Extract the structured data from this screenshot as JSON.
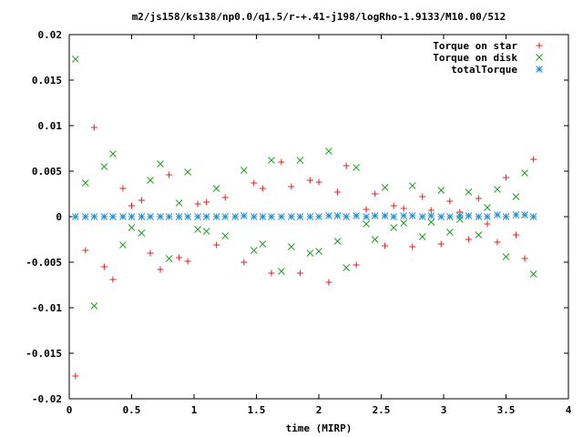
{
  "chart_data": {
    "type": "scatter",
    "title": "m2/js158/ks138/np0.0/q1.5/r-+.41-j198/logRho-1.9133/M10.00/512",
    "xlabel": "time (MIRP)",
    "ylabel": "",
    "xlim": [
      0,
      4
    ],
    "ylim": [
      -0.02,
      0.02
    ],
    "xticks": [
      "0",
      "0.5",
      "1",
      "1.5",
      "2",
      "2.5",
      "3",
      "3.5",
      "4"
    ],
    "yticks": [
      "0.02",
      "0.015",
      "0.01",
      "0.005",
      "0",
      "-0.005",
      "-0.01",
      "-0.015",
      "-0.02"
    ],
    "grid": false,
    "legend_position": "top-right",
    "series": [
      {
        "name": "Torque on star",
        "marker": "plus",
        "color": "#e02020",
        "x": [
          0.05,
          0.13,
          0.2,
          0.28,
          0.35,
          0.43,
          0.5,
          0.58,
          0.65,
          0.73,
          0.8,
          0.88,
          0.95,
          1.03,
          1.1,
          1.18,
          1.25,
          1.4,
          1.48,
          1.55,
          1.62,
          1.7,
          1.78,
          1.85,
          1.93,
          2.0,
          2.08,
          2.15,
          2.22,
          2.3,
          2.38,
          2.45,
          2.53,
          2.6,
          2.68,
          2.75,
          2.83,
          2.9,
          2.98,
          3.05,
          3.13,
          3.2,
          3.28,
          3.35,
          3.43,
          3.5,
          3.58,
          3.65,
          3.72
        ],
        "y": [
          -0.0175,
          -0.0037,
          0.0098,
          -0.0055,
          -0.0069,
          0.0031,
          0.0012,
          0.0018,
          -0.004,
          -0.0058,
          0.0046,
          -0.0045,
          -0.0049,
          0.0014,
          0.0016,
          -0.0031,
          0.0021,
          -0.005,
          0.0037,
          0.0031,
          -0.0062,
          0.006,
          0.0033,
          -0.0062,
          0.004,
          0.0038,
          -0.0072,
          0.0027,
          0.0056,
          -0.0053,
          0.0008,
          0.0025,
          -0.0032,
          0.0012,
          0.0009,
          -0.0033,
          0.0022,
          0.0007,
          -0.003,
          0.0017,
          0.0005,
          -0.0025,
          0.002,
          -0.0008,
          -0.0028,
          0.0043,
          -0.002,
          -0.0046,
          0.0063
        ]
      },
      {
        "name": "Torque on disk",
        "marker": "cross",
        "color": "#20a020",
        "x": [
          0.05,
          0.13,
          0.2,
          0.28,
          0.35,
          0.43,
          0.5,
          0.58,
          0.65,
          0.73,
          0.8,
          0.88,
          0.95,
          1.03,
          1.1,
          1.18,
          1.25,
          1.4,
          1.48,
          1.55,
          1.62,
          1.7,
          1.78,
          1.85,
          1.93,
          2.0,
          2.08,
          2.15,
          2.22,
          2.3,
          2.38,
          2.45,
          2.53,
          2.6,
          2.68,
          2.75,
          2.83,
          2.9,
          2.98,
          3.05,
          3.13,
          3.2,
          3.28,
          3.35,
          3.43,
          3.5,
          3.58,
          3.65,
          3.72
        ],
        "y": [
          0.0173,
          0.0037,
          -0.0098,
          0.0055,
          0.0069,
          -0.0031,
          -0.0012,
          -0.0018,
          0.004,
          0.0058,
          -0.0046,
          0.0015,
          0.0049,
          -0.0014,
          -0.0016,
          0.0031,
          -0.0021,
          0.0051,
          -0.0037,
          -0.003,
          0.0062,
          -0.006,
          -0.0033,
          0.0062,
          -0.004,
          -0.0038,
          0.0072,
          -0.0027,
          -0.0056,
          0.0054,
          -0.0008,
          -0.0025,
          0.0032,
          -0.0012,
          -0.0007,
          0.0034,
          -0.0022,
          -0.0006,
          0.0029,
          -0.0017,
          -0.0003,
          0.0027,
          -0.002,
          0.001,
          0.003,
          -0.0044,
          0.0022,
          0.0048,
          -0.0063
        ]
      },
      {
        "name": "totalTorque",
        "marker": "star",
        "color": "#2090d0",
        "x": [
          0.05,
          0.13,
          0.2,
          0.28,
          0.35,
          0.43,
          0.5,
          0.58,
          0.65,
          0.73,
          0.8,
          0.88,
          0.95,
          1.03,
          1.1,
          1.18,
          1.25,
          1.33,
          1.4,
          1.48,
          1.55,
          1.62,
          1.7,
          1.78,
          1.85,
          1.93,
          2.0,
          2.08,
          2.15,
          2.22,
          2.3,
          2.38,
          2.45,
          2.53,
          2.6,
          2.68,
          2.75,
          2.83,
          2.9,
          2.98,
          3.05,
          3.13,
          3.2,
          3.28,
          3.35,
          3.43,
          3.5,
          3.58,
          3.65,
          3.72
        ],
        "y": [
          0.0,
          0.0,
          0.0,
          0.0,
          0.0,
          0.0,
          0.0,
          0.0,
          0.0,
          0.0,
          0.0,
          0.0,
          0.0,
          0.0,
          0.0,
          0.0,
          0.0,
          0.0,
          0.0001,
          0.0,
          0.0,
          0.0,
          0.0,
          0.0,
          0.0,
          0.0,
          0.0,
          0.0001,
          0.0001,
          0.0,
          0.0001,
          0.0,
          0.0001,
          0.0001,
          0.0,
          0.0001,
          0.0001,
          0.0,
          0.0001,
          0.0,
          0.0,
          0.0001,
          0.0001,
          0.0,
          0.0,
          0.0002,
          0.0,
          0.0002,
          0.0002,
          0.0
        ]
      }
    ]
  }
}
